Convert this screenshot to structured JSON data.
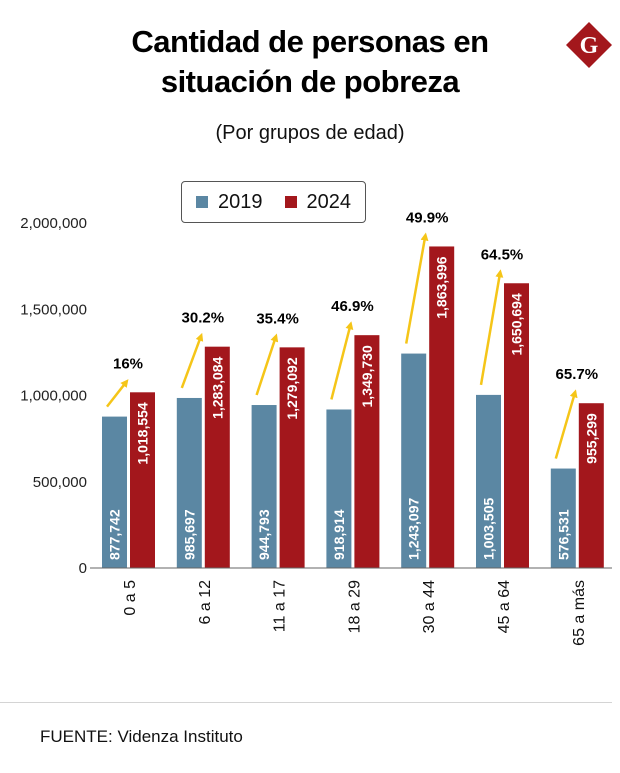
{
  "header": {
    "title_line1": "Cantidad de personas en",
    "title_line2": "situación de pobreza",
    "subtitle": "(Por grupos de edad)",
    "logo_letter": "G"
  },
  "colors": {
    "series_2019": "#5b87a3",
    "series_2024": "#a3171c",
    "arrow": "#f5c518",
    "logo": "#a3171c"
  },
  "legend": {
    "items": [
      {
        "label": "2019"
      },
      {
        "label": "2024"
      }
    ]
  },
  "footer": {
    "source": "FUENTE: Videnza Instituto"
  },
  "chart_data": {
    "type": "bar",
    "title": "Cantidad de personas en situación de pobreza",
    "subtitle": "(Por grupos de edad)",
    "xlabel": "",
    "ylabel": "",
    "ylim": [
      0,
      2000000
    ],
    "yticks": [
      0,
      500000,
      1000000,
      1500000,
      2000000
    ],
    "ytick_labels": [
      "0",
      "500,000",
      "1,000,000",
      "1,500,000",
      "2,000,000"
    ],
    "grid": false,
    "legend_position": "top-center",
    "categories": [
      "0 a 5",
      "6 a 12",
      "11 a 17",
      "18 a 29",
      "30 a 44",
      "45 a 64",
      "65 a más"
    ],
    "series": [
      {
        "name": "2019",
        "values": [
          877742,
          985697,
          944793,
          918914,
          1243097,
          1003505,
          576531
        ],
        "labels": [
          "877,742",
          "985,697",
          "944,793",
          "918,914",
          "1,243,097",
          "1,003,505",
          "576,531"
        ]
      },
      {
        "name": "2024",
        "values": [
          1018554,
          1283084,
          1279092,
          1349730,
          1863996,
          1650694,
          955299
        ],
        "labels": [
          "1,018,554",
          "1,283,084",
          "1,279,092",
          "1,349,730",
          "1,863,996",
          "1,650,694",
          "955,299"
        ]
      }
    ],
    "annotations": [
      "16%",
      "30.2%",
      "35.4%",
      "46.9%",
      "49.9%",
      "64.5%",
      "65.7%"
    ]
  }
}
